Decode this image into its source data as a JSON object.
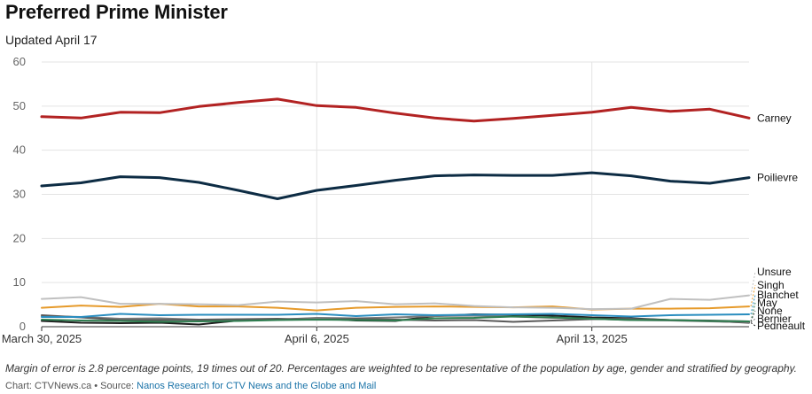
{
  "header": {
    "title": "Preferred Prime Minister",
    "subtitle": "Updated April 17"
  },
  "footer": {
    "note": "Margin of error is 2.8 percentage points, 19 times out of 20. Percentages are weighted to be representative of the population by age, gender and stratified by geography.",
    "credit_prefix": "Chart: CTVNews.ca • Source: ",
    "source_link": "Nanos Research for CTV News and the Globe and Mail"
  },
  "chart_data": {
    "type": "line",
    "title": "Preferred Prime Minister",
    "xlabel": "",
    "ylabel": "",
    "x": [
      "2025-03-30",
      "2025-03-31",
      "2025-04-01",
      "2025-04-02",
      "2025-04-03",
      "2025-04-04",
      "2025-04-05",
      "2025-04-06",
      "2025-04-07",
      "2025-04-08",
      "2025-04-09",
      "2025-04-10",
      "2025-04-11",
      "2025-04-12",
      "2025-04-13",
      "2025-04-14",
      "2025-04-15",
      "2025-04-16",
      "2025-04-17"
    ],
    "x_ticks": [
      "March 30, 2025",
      "April 6, 2025",
      "April 13, 2025"
    ],
    "ylim": [
      0,
      60
    ],
    "y_ticks": [
      0,
      10,
      20,
      30,
      40,
      50,
      60
    ],
    "grid": true,
    "series": [
      {
        "name": "Carney",
        "color": "#b22222",
        "values": [
          47.6,
          47.3,
          48.6,
          48.5,
          49.9,
          50.8,
          51.6,
          50.1,
          49.7,
          48.4,
          47.3,
          46.6,
          47.2,
          47.9,
          48.6,
          49.7,
          48.8,
          49.3,
          47.3
        ]
      },
      {
        "name": "Poilievre",
        "color": "#0d2c44",
        "values": [
          31.9,
          32.6,
          34.0,
          33.8,
          32.7,
          30.9,
          29.0,
          30.9,
          32.0,
          33.2,
          34.2,
          34.4,
          34.3,
          34.3,
          34.9,
          34.2,
          33.0,
          32.5,
          33.8
        ]
      },
      {
        "name": "Unsure",
        "color": "#c0c0c0",
        "values": [
          6.3,
          6.7,
          5.2,
          5.2,
          5.1,
          4.9,
          5.7,
          5.5,
          5.8,
          5.1,
          5.3,
          4.7,
          4.4,
          4.3,
          4.0,
          4.1,
          6.3,
          6.1,
          7.1
        ]
      },
      {
        "name": "Singh",
        "color": "#e69a2a",
        "values": [
          4.3,
          4.8,
          4.5,
          5.2,
          4.6,
          4.6,
          4.3,
          3.7,
          4.3,
          4.5,
          4.6,
          4.5,
          4.4,
          4.6,
          3.9,
          4.1,
          4.1,
          4.2,
          4.6
        ]
      },
      {
        "name": "Blanchet",
        "color": "#2a8dbf",
        "values": [
          2.2,
          2.2,
          2.9,
          2.6,
          2.7,
          2.7,
          2.7,
          2.9,
          2.4,
          2.8,
          2.6,
          2.7,
          2.8,
          2.9,
          2.6,
          2.3,
          2.6,
          2.7,
          2.8
        ]
      },
      {
        "name": "May",
        "color": "#2e7d4f",
        "values": [
          1.6,
          1.4,
          1.3,
          1.1,
          1.2,
          1.3,
          1.5,
          1.6,
          1.5,
          1.4,
          1.9,
          2.0,
          2.3,
          2.1,
          1.8,
          1.5,
          1.5,
          1.3,
          1.2
        ]
      },
      {
        "name": "None",
        "color": "#5a5a5a",
        "values": [
          2.6,
          2.1,
          1.5,
          1.5,
          1.6,
          1.7,
          1.8,
          1.6,
          1.8,
          1.6,
          1.4,
          1.5,
          1.1,
          1.4,
          1.7,
          1.8,
          1.5,
          1.4,
          1.2
        ]
      },
      {
        "name": "Bernier",
        "color": "#7a7a7a",
        "values": [
          2.4,
          2.2,
          1.8,
          1.9,
          1.6,
          1.4,
          1.6,
          2.0,
          1.9,
          2.1,
          2.4,
          2.5,
          2.3,
          2.0,
          1.8,
          1.5,
          1.4,
          1.2,
          1.0
        ]
      },
      {
        "name": "Pedneault",
        "color": "#1e1e1e",
        "values": [
          1.3,
          0.9,
          0.8,
          0.9,
          0.5,
          1.4,
          1.6,
          1.9,
          1.4,
          1.3,
          2.4,
          2.8,
          2.7,
          2.5,
          2.1,
          1.9,
          1.5,
          1.3,
          0.9
        ]
      }
    ]
  }
}
